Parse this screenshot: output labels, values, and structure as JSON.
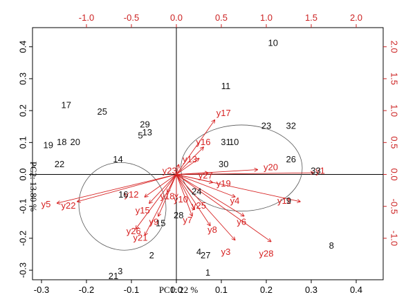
{
  "chart_data": {
    "type": "scatter",
    "subtype": "pca-biplot",
    "title": "",
    "xlabel": "PC1: 22 %",
    "ylabel": "PC2: 13.80 %",
    "xlim": [
      -0.32,
      0.46
    ],
    "ylim": [
      -0.33,
      0.46
    ],
    "x_ticks": [
      "-0.3",
      "-0.2",
      "-0.1",
      "0.0",
      "0.1",
      "0.2",
      "0.3",
      "0.4"
    ],
    "x_tick_values": [
      -0.3,
      -0.2,
      -0.1,
      0.0,
      0.1,
      0.2,
      0.3,
      0.4
    ],
    "y_ticks": [
      "-0.3",
      "-0.2",
      "-0.1",
      "0.0",
      "0.1",
      "0.2",
      "0.3",
      "0.4"
    ],
    "y_tick_values": [
      -0.3,
      -0.2,
      -0.1,
      0.0,
      0.1,
      0.2,
      0.3,
      0.4
    ],
    "top_ticks": [
      "-1.0",
      "-0.5",
      "0.0",
      "0.5",
      "1.0",
      "1.5",
      "2.0"
    ],
    "top_tick_values": [
      -1.0,
      -0.5,
      0.0,
      0.5,
      1.0,
      1.5,
      2.0
    ],
    "right_ticks": [
      "-1.0",
      "-0.5",
      "0.0",
      "0.5",
      "1.0",
      "1.5",
      "2.0"
    ],
    "right_tick_values": [
      -1.0,
      -0.5,
      0.0,
      0.5,
      1.0,
      1.5,
      2.0
    ],
    "loading_scale": 5.0,
    "grid": false,
    "origin_lines": true,
    "observations": [
      {
        "label": "10",
        "x": 0.215,
        "y": 0.41
      },
      {
        "label": "11",
        "x": 0.11,
        "y": 0.275
      },
      {
        "label": "17",
        "x": -0.245,
        "y": 0.215
      },
      {
        "label": "25",
        "x": -0.165,
        "y": 0.195
      },
      {
        "label": "29",
        "x": -0.07,
        "y": 0.155
      },
      {
        "label": "13",
        "x": -0.065,
        "y": 0.13
      },
      {
        "label": "5",
        "x": -0.08,
        "y": 0.12
      },
      {
        "label": "23",
        "x": 0.2,
        "y": 0.15
      },
      {
        "label": "32",
        "x": 0.255,
        "y": 0.15
      },
      {
        "label": "18",
        "x": -0.255,
        "y": 0.1
      },
      {
        "label": "20",
        "x": -0.225,
        "y": 0.1
      },
      {
        "label": "19",
        "x": -0.285,
        "y": 0.09
      },
      {
        "label": "31",
        "x": 0.11,
        "y": 0.1
      },
      {
        "label": "10",
        "x": 0.128,
        "y": 0.1
      },
      {
        "label": "26",
        "x": 0.255,
        "y": 0.045
      },
      {
        "label": "14",
        "x": -0.13,
        "y": 0.045
      },
      {
        "label": "22",
        "x": -0.26,
        "y": 0.03
      },
      {
        "label": "30",
        "x": 0.105,
        "y": 0.03
      },
      {
        "label": "33",
        "x": 0.31,
        "y": 0.01
      },
      {
        "label": "24",
        "x": 0.045,
        "y": -0.055
      },
      {
        "label": "16",
        "x": -0.118,
        "y": -0.065
      },
      {
        "label": "9",
        "x": 0.25,
        "y": -0.085
      },
      {
        "label": "28",
        "x": 0.005,
        "y": -0.13
      },
      {
        "label": "15",
        "x": -0.035,
        "y": -0.155
      },
      {
        "label": "4",
        "x": 0.05,
        "y": -0.245
      },
      {
        "label": "27",
        "x": 0.065,
        "y": -0.255
      },
      {
        "label": "2",
        "x": -0.055,
        "y": -0.255
      },
      {
        "label": "8",
        "x": 0.345,
        "y": -0.225
      },
      {
        "label": "3",
        "x": -0.125,
        "y": -0.305
      },
      {
        "label": "21",
        "x": -0.14,
        "y": -0.32
      },
      {
        "label": "1",
        "x": 0.07,
        "y": -0.31
      }
    ],
    "loadings": [
      {
        "label": "y1",
        "x": 0.305,
        "y": 0.005,
        "lx": 0.32,
        "ly": 0.01
      },
      {
        "label": "y3",
        "x": 0.13,
        "y": -0.205,
        "lx": 0.11,
        "ly": -0.245
      },
      {
        "label": "y4",
        "x": 0.13,
        "y": -0.07,
        "lx": 0.13,
        "ly": -0.085
      },
      {
        "label": "y5",
        "x": -0.265,
        "y": -0.09,
        "lx": -0.29,
        "ly": -0.095
      },
      {
        "label": "y6",
        "x": 0.15,
        "y": -0.13,
        "lx": 0.145,
        "ly": -0.15
      },
      {
        "label": "y7",
        "x": 0.035,
        "y": -0.13,
        "lx": 0.025,
        "ly": -0.145
      },
      {
        "label": "y8",
        "x": 0.075,
        "y": -0.16,
        "lx": 0.08,
        "ly": -0.175
      },
      {
        "label": "y9",
        "x": -0.04,
        "y": -0.13,
        "lx": -0.05,
        "ly": -0.15
      },
      {
        "label": "y10",
        "x": 0.0,
        "y": -0.07,
        "lx": 0.01,
        "ly": -0.08
      },
      {
        "label": "y11",
        "x": 0.275,
        "y": -0.085,
        "lx": 0.24,
        "ly": -0.085
      },
      {
        "label": "y12",
        "x": -0.07,
        "y": -0.07,
        "lx": -0.1,
        "ly": -0.065
      },
      {
        "label": "y13",
        "x": 0.05,
        "y": 0.05,
        "lx": 0.03,
        "ly": 0.045
      },
      {
        "label": "y15",
        "x": -0.06,
        "y": -0.09,
        "lx": -0.075,
        "ly": -0.115
      },
      {
        "label": "y16",
        "x": 0.06,
        "y": 0.085,
        "lx": 0.06,
        "ly": 0.1
      },
      {
        "label": "y17",
        "x": 0.085,
        "y": 0.17,
        "lx": 0.105,
        "ly": 0.19
      },
      {
        "label": "y18",
        "x": -0.02,
        "y": -0.055,
        "lx": -0.02,
        "ly": -0.07
      },
      {
        "label": "y19",
        "x": 0.08,
        "y": -0.025,
        "lx": 0.105,
        "ly": -0.03
      },
      {
        "label": "y20",
        "x": 0.18,
        "y": 0.015,
        "lx": 0.21,
        "ly": 0.02
      },
      {
        "label": "y21",
        "x": -0.07,
        "y": -0.19,
        "lx": -0.08,
        "ly": -0.2
      },
      {
        "label": "y22",
        "x": -0.22,
        "y": -0.085,
        "lx": -0.24,
        "ly": -0.1
      },
      {
        "label": "y23",
        "x": 0.005,
        "y": 0.03,
        "lx": -0.015,
        "ly": 0.01
      },
      {
        "label": "y25",
        "x": 0.04,
        "y": -0.11,
        "lx": 0.05,
        "ly": -0.1
      },
      {
        "label": "y26",
        "x": -0.09,
        "y": -0.17,
        "lx": -0.095,
        "ly": -0.18
      },
      {
        "label": "y27",
        "x": 0.07,
        "y": 0.005,
        "lx": 0.065,
        "ly": -0.005
      },
      {
        "label": "y28",
        "x": 0.21,
        "y": -0.21,
        "lx": 0.2,
        "ly": -0.25
      }
    ],
    "ellipses": [
      {
        "cx": 0.145,
        "cy": 0.02,
        "rx": 0.135,
        "ry": 0.135,
        "angle": 0
      },
      {
        "cx": -0.12,
        "cy": -0.1,
        "rx": 0.095,
        "ry": 0.14,
        "angle": -40
      }
    ],
    "colors": {
      "observations": "#111111",
      "loadings": "#d62020",
      "top_right_ticks": "#cc2222",
      "frame": "#000000"
    }
  }
}
